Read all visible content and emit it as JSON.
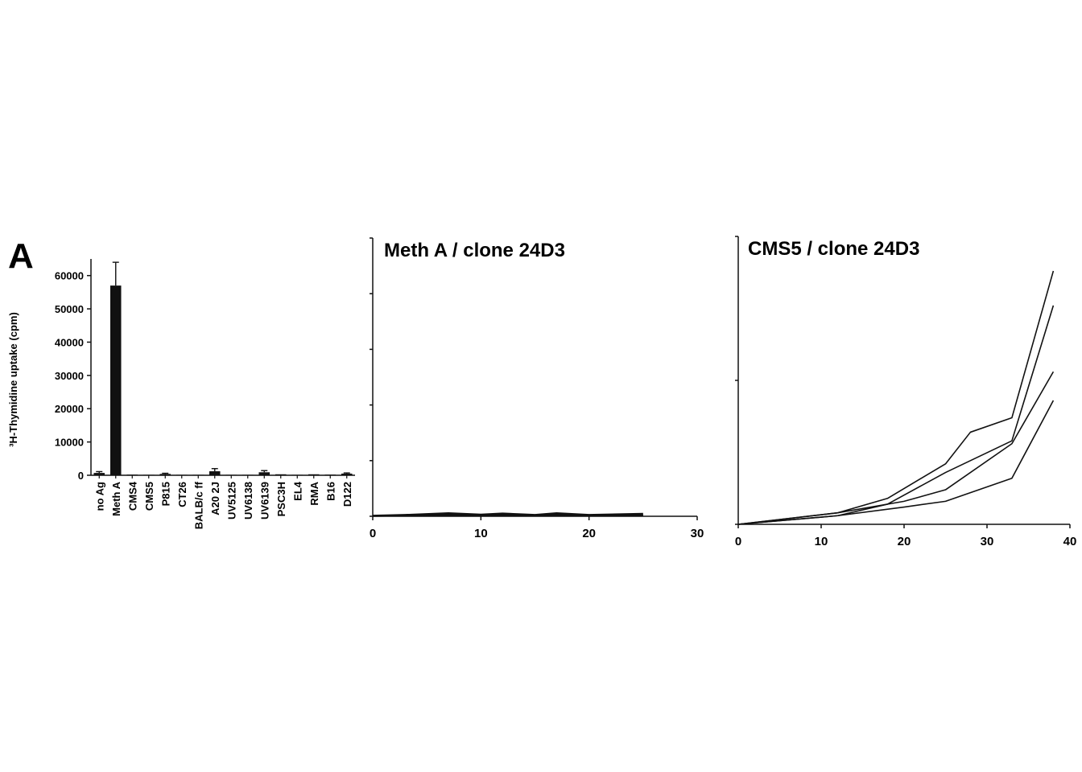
{
  "figure": {
    "panel_label": "A"
  },
  "chart_data": [
    {
      "type": "bar",
      "title": "",
      "ylabel": "³H-Thymidine uptake (cpm)",
      "xlabel": "",
      "ylim": [
        0,
        65000
      ],
      "yticks": [
        0,
        10000,
        20000,
        30000,
        40000,
        50000,
        60000
      ],
      "categories": [
        "no Ag",
        "Meth A",
        "CMS4",
        "CMS5",
        "P815",
        "CT26",
        "BALB/c ff",
        "A20 2J",
        "UV5125",
        "UV6138",
        "UV6139",
        "PSC3H",
        "EL4",
        "RMA",
        "B16",
        "D122"
      ],
      "values": [
        700,
        57000,
        200,
        150,
        400,
        150,
        150,
        1200,
        150,
        150,
        900,
        300,
        150,
        300,
        200,
        500
      ],
      "errors": [
        400,
        7000,
        0,
        0,
        200,
        0,
        0,
        800,
        0,
        0,
        500,
        0,
        0,
        0,
        0,
        200
      ],
      "bar_color": "#111111"
    },
    {
      "type": "line",
      "title": "Meth A / clone 24D3",
      "xlabel": "",
      "ylabel": "",
      "xlim": [
        0,
        30
      ],
      "ylim": [
        0,
        100
      ],
      "xticks": [
        0,
        10,
        20,
        30
      ],
      "series": [
        {
          "x": [
            0,
            3,
            7,
            10,
            12,
            15,
            17,
            20,
            25
          ],
          "y": [
            0.3,
            0.6,
            1.2,
            0.7,
            1.1,
            0.6,
            1.2,
            0.6,
            1.0
          ]
        },
        {
          "x": [
            0,
            3,
            7,
            10,
            12,
            15,
            17,
            20,
            25
          ],
          "y": [
            0.2,
            0.4,
            0.8,
            0.5,
            0.8,
            0.4,
            0.9,
            0.4,
            0.6
          ]
        },
        {
          "x": [
            0,
            3,
            7,
            10,
            12,
            15,
            17,
            20,
            25
          ],
          "y": [
            0.1,
            0.3,
            0.6,
            0.3,
            0.6,
            0.3,
            0.6,
            0.3,
            0.4
          ]
        },
        {
          "x": [
            0,
            3,
            7,
            10,
            12,
            15,
            17,
            20,
            25
          ],
          "y": [
            0.0,
            0.2,
            0.4,
            0.2,
            0.4,
            0.2,
            0.4,
            0.2,
            0.3
          ]
        }
      ]
    },
    {
      "type": "line",
      "title": "CMS5 / clone 24D3",
      "xlabel": "",
      "ylabel": "",
      "xlim": [
        0,
        40
      ],
      "ylim": [
        0,
        100
      ],
      "xticks": [
        0,
        10,
        20,
        30,
        40
      ],
      "series": [
        {
          "x": [
            0,
            12,
            18,
            25,
            28,
            33,
            38
          ],
          "y": [
            0,
            4,
            9,
            21,
            32,
            37,
            88
          ]
        },
        {
          "x": [
            0,
            12,
            18,
            25,
            33,
            38
          ],
          "y": [
            0,
            3,
            7,
            18,
            29,
            76
          ]
        },
        {
          "x": [
            0,
            12,
            20,
            25,
            33,
            38
          ],
          "y": [
            0,
            4,
            8,
            12,
            28,
            53
          ]
        },
        {
          "x": [
            0,
            12,
            20,
            25,
            33,
            38
          ],
          "y": [
            0,
            3,
            6,
            8,
            16,
            43
          ]
        }
      ]
    }
  ]
}
